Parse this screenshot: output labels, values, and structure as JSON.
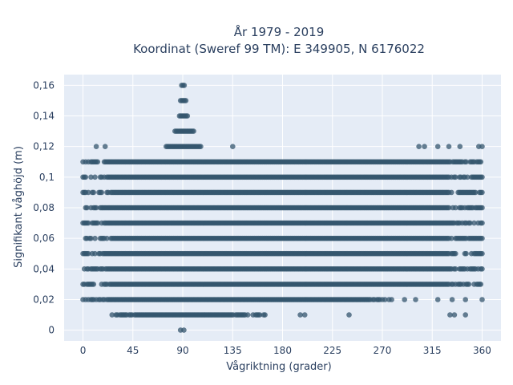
{
  "chart_data": {
    "type": "scatter",
    "title": "År 1979 - 2019",
    "subtitle": "Koordinat (Sweref 99 TM): E 349905, N 6176022",
    "xlabel": "Vågriktning (grader)",
    "ylabel": "Signifikant våghöjd (m)",
    "xlim": [
      -17,
      377
    ],
    "ylim": [
      -0.007,
      0.167
    ],
    "x_ticks": [
      0,
      45,
      90,
      135,
      180,
      225,
      270,
      315,
      360
    ],
    "y_ticks": [
      0,
      0.02,
      0.04,
      0.06,
      0.08,
      0.1,
      0.12,
      0.14,
      0.16
    ],
    "y_tick_labels": [
      "0",
      "0,02",
      "0,04",
      "0,06",
      "0,08",
      "0,1",
      "0,12",
      "0,14",
      "0,16"
    ],
    "grid": true,
    "legend": "none",
    "marker_color": "#34566d",
    "plot_bg": "#e5ecf6",
    "series": [
      {
        "points": [
          {
            "x": 88,
            "y": 0
          },
          {
            "x": 91,
            "y": 0
          },
          {
            "x": 25,
            "y": 0.01,
            "x_end": 165
          },
          {
            "x": 196,
            "y": 0.01
          },
          {
            "x": 200,
            "y": 0.01
          },
          {
            "x": 240,
            "y": 0.01
          },
          {
            "x": 331,
            "y": 0.01
          },
          {
            "x": 335,
            "y": 0.01
          },
          {
            "x": 345,
            "y": 0.01
          },
          {
            "x": 0,
            "y": 0.02,
            "x_end": 280
          },
          {
            "x": 290,
            "y": 0.02
          },
          {
            "x": 300,
            "y": 0.02
          },
          {
            "x": 320,
            "y": 0.02
          },
          {
            "x": 333,
            "y": 0.02
          },
          {
            "x": 345,
            "y": 0.02
          },
          {
            "x": 360,
            "y": 0.02
          },
          {
            "x": 0,
            "y": 0.03,
            "x_end": 360
          },
          {
            "x": 0,
            "y": 0.04,
            "x_end": 360
          },
          {
            "x": 0,
            "y": 0.05,
            "x_end": 360
          },
          {
            "x": 0,
            "y": 0.06,
            "x_end": 360
          },
          {
            "x": 0,
            "y": 0.07,
            "x_end": 360
          },
          {
            "x": 0,
            "y": 0.08,
            "x_end": 360
          },
          {
            "x": 0,
            "y": 0.09,
            "x_end": 360
          },
          {
            "x": 0,
            "y": 0.1,
            "x_end": 360
          },
          {
            "x": 0,
            "y": 0.11,
            "x_end": 360
          },
          {
            "x": 12,
            "y": 0.12
          },
          {
            "x": 20,
            "y": 0.12
          },
          {
            "x": 75,
            "y": 0.12,
            "x_end": 107
          },
          {
            "x": 135,
            "y": 0.12
          },
          {
            "x": 303,
            "y": 0.12
          },
          {
            "x": 308,
            "y": 0.12
          },
          {
            "x": 320,
            "y": 0.12
          },
          {
            "x": 330,
            "y": 0.12
          },
          {
            "x": 340,
            "y": 0.12
          },
          {
            "x": 357,
            "y": 0.12
          },
          {
            "x": 360,
            "y": 0.12
          },
          {
            "x": 83,
            "y": 0.13,
            "x_end": 100
          },
          {
            "x": 87,
            "y": 0.14,
            "x_end": 95
          },
          {
            "x": 88,
            "y": 0.15,
            "x_end": 93
          },
          {
            "x": 89,
            "y": 0.16,
            "x_end": 92
          }
        ]
      }
    ]
  }
}
